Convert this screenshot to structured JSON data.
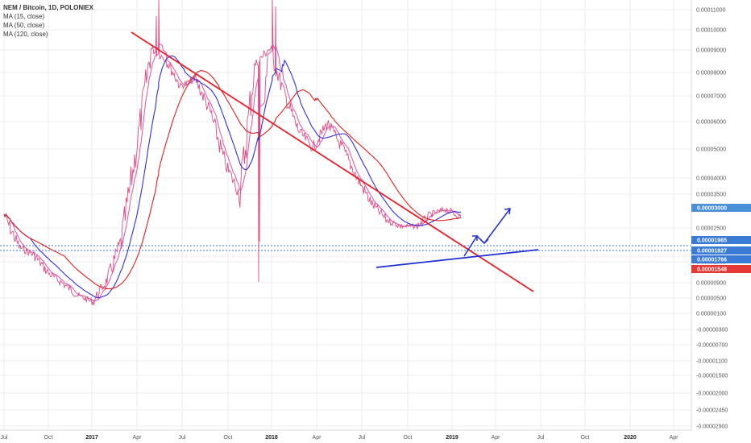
{
  "legend": {
    "title": "NEM / Bitcoin, 1D, POLONIEX",
    "ma15": "MA (15, close)",
    "ma50": "MA (50, close)",
    "ma120": "MA (120, close)"
  },
  "chart_data": {
    "type": "line",
    "title": "NEM / Bitcoin, 1D, POLONIEX",
    "x_ticks": [
      "Jul",
      "Oct",
      "2017",
      "Apr",
      "Jul",
      "Oct",
      "2018",
      "Apr",
      "Jul",
      "Oct",
      "2019",
      "Apr",
      "Jul",
      "Oct",
      "2020",
      "Apr"
    ],
    "y_ticks": [
      "0.00011000",
      "0.00010000",
      "0.00009000",
      "0.00008000",
      "0.00007000",
      "0.00006000",
      "0.00005000",
      "0.00004000",
      "0.00003500",
      "0.00002500",
      "0.00001500",
      "0.00000900",
      "0.00000500",
      "0.00000100",
      "-0.00000300",
      "-0.00000700",
      "-0.00001100",
      "-0.00001500",
      "-0.00002000",
      "-0.00002450",
      "-0.00002900"
    ],
    "price_tags": [
      {
        "label": "0.00003000",
        "color": "#4a90d9"
      },
      {
        "label": "0.00001965",
        "color": "#3a7bd5"
      },
      {
        "label": "0.00001827",
        "color": "#3a7bd5"
      },
      {
        "label": "0.00001766",
        "color": "#3a7bd5"
      },
      {
        "label": "0.00001548",
        "color": "#e53935"
      }
    ],
    "series": [
      {
        "name": "MA (15, close)",
        "color": "#e040a0"
      },
      {
        "name": "MA (50, close)",
        "color": "#3030e0"
      },
      {
        "name": "MA (120, close)",
        "color": "#e02020"
      }
    ],
    "approx_price_series": {
      "dates": [
        "2016-07",
        "2016-08",
        "2016-09",
        "2016-10",
        "2016-11",
        "2016-12",
        "2017-01",
        "2017-02",
        "2017-03",
        "2017-04",
        "2017-05",
        "2017-06",
        "2017-07",
        "2017-08",
        "2017-09",
        "2017-10",
        "2017-11",
        "2017-12",
        "2018-01",
        "2018-02",
        "2018-03",
        "2018-04",
        "2018-05",
        "2018-06",
        "2018-07",
        "2018-08",
        "2018-09",
        "2018-10",
        "2018-11",
        "2018-12",
        "2019-01",
        "2019-02"
      ],
      "values": [
        1.8e-05,
        1.3e-05,
        1.2e-05,
        1e-05,
        9e-06,
        8e-06,
        7.5e-06,
        9.5e-06,
        1.4e-05,
        3.5e-05,
        9.5e-05,
        8.5e-05,
        6.5e-05,
        7e-05,
        5e-05,
        3e-05,
        2.2e-05,
        8e-05,
        9.5e-05,
        6e-05,
        4.2e-05,
        3.5e-05,
        4.5e-05,
        3.5e-05,
        2.6e-05,
        2e-05,
        1.7e-05,
        1.6e-05,
        1.6e-05,
        1.8e-05,
        1.9e-05,
        1.75e-05
      ]
    }
  },
  "colors": {
    "price": "#e91e63",
    "ma15": "#e040a0",
    "ma50": "#3030e0",
    "ma120": "#e02020",
    "trend_red": "#e8202a",
    "trend_blue": "#1f2ed6",
    "grid": "#eeeeee"
  }
}
